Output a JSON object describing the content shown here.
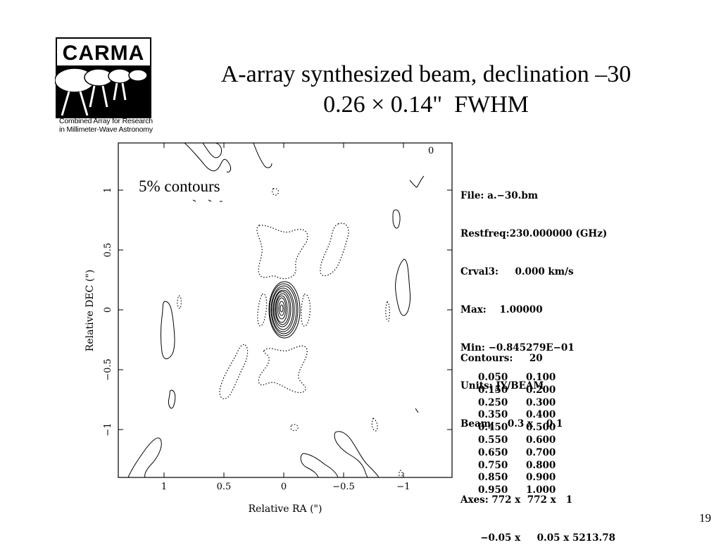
{
  "logo": {
    "wordmark": "CARMA",
    "caption_line1": "Combined Array for Research",
    "caption_line2": "in Millimeter-Wave Astronomy"
  },
  "slide": {
    "title_line1": "A-array synthesized beam, declination –30",
    "title_line2": "0.26 × 0.14\"  FWHM",
    "page_number": "19"
  },
  "plot": {
    "annotation": "5% contours",
    "corner_mark": "0",
    "xlabel": "Relative RA (\")",
    "ylabel": "Relative DEC (\")",
    "x_ticks": [
      "1",
      "0.5",
      "0",
      "−0.5",
      "−1"
    ],
    "y_ticks": [
      "1",
      "0.5",
      "0",
      "−0.5",
      "−1"
    ]
  },
  "info": {
    "file": "File: a.−30.bm",
    "restfreq": "Restfreq:230.000000 (GHz)",
    "crval3": "Crval3:     0.000 km/s",
    "max": "Max:    1.00000",
    "min": "Min: −0.845279E−01",
    "units": "Units: JY/BEAM",
    "beam": "Beam:    0.3 x    0.1",
    "axes": "Axes: 772 x  772 x   1",
    "axes2": "      −0.05 x     0.05 x 5213.78"
  },
  "contours": {
    "header": "Contours:     20",
    "levels": [
      [
        "0.050",
        "0.100"
      ],
      [
        "0.150",
        "0.200"
      ],
      [
        "0.250",
        "0.300"
      ],
      [
        "0.350",
        "0.400"
      ],
      [
        "0.450",
        "0.500"
      ],
      [
        "0.550",
        "0.600"
      ],
      [
        "0.650",
        "0.700"
      ],
      [
        "0.750",
        "0.800"
      ],
      [
        "0.850",
        "0.900"
      ],
      [
        "0.950",
        "1.000"
      ]
    ]
  }
}
